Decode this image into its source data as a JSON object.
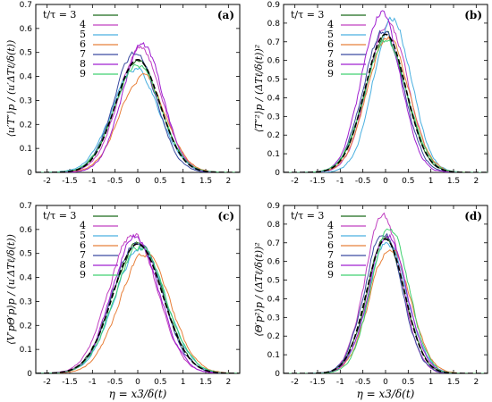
{
  "colors": {
    "3": "#1a6b1a",
    "4": "#c040c0",
    "5": "#4ab0e0",
    "6": "#e8803a",
    "7": "#3a4aa0",
    "8": "#a020d0",
    "9": "#40d070",
    "mean": "#000000"
  },
  "chart_data": [
    {
      "type": "line",
      "panel": "(a)",
      "ylabel": "⟨u′T″⟩p / (u′ΔTℓ/δ(t))",
      "xlabel": "",
      "xlim": [
        -2.25,
        2.25
      ],
      "ylim": [
        0,
        0.7
      ],
      "xticks": [
        "-2",
        "-1.5",
        "-1",
        "-0.5",
        "0",
        "0.5",
        "1",
        "1.5",
        "2"
      ],
      "yticks": [
        "0",
        "0.1",
        "0.2",
        "0.3",
        "0.4",
        "0.5",
        "0.6",
        "0.7"
      ],
      "legend": {
        "title": "t/τ = 3",
        "entries": [
          "3",
          "4",
          "5",
          "6",
          "7",
          "8",
          "9"
        ],
        "position": "top-left"
      },
      "series": [
        {
          "name": "3",
          "peak": 0.46,
          "mu": 0.0,
          "sigma": 0.5
        },
        {
          "name": "4",
          "peak": 0.52,
          "mu": 0.05,
          "sigma": 0.48
        },
        {
          "name": "5",
          "peak": 0.43,
          "mu": -0.05,
          "sigma": 0.52
        },
        {
          "name": "6",
          "peak": 0.4,
          "mu": 0.1,
          "sigma": 0.5
        },
        {
          "name": "7",
          "peak": 0.5,
          "mu": -0.05,
          "sigma": 0.47
        },
        {
          "name": "8",
          "peak": 0.53,
          "mu": 0.1,
          "sigma": 0.45
        },
        {
          "name": "9",
          "peak": 0.45,
          "mu": 0.0,
          "sigma": 0.51
        },
        {
          "name": "mean",
          "peak": 0.47,
          "mu": 0.0,
          "sigma": 0.49
        }
      ]
    },
    {
      "type": "line",
      "panel": "(b)",
      "ylabel": "⟨T″²⟩p / (ΔTℓ/δ(t))²",
      "xlabel": "",
      "xlim": [
        -2.25,
        2.25
      ],
      "ylim": [
        0,
        0.9
      ],
      "xticks": [
        "-2",
        "-1.5",
        "-1",
        "-0.5",
        "0",
        "0.5",
        "1",
        "1.5",
        "2"
      ],
      "yticks": [
        "0",
        "0.1",
        "0.2",
        "0.3",
        "0.4",
        "0.5",
        "0.6",
        "0.7",
        "0.8",
        "0.9"
      ],
      "legend": {
        "title": "t/τ = 3",
        "entries": [
          "3",
          "4",
          "5",
          "6",
          "7",
          "8",
          "9"
        ],
        "position": "top-left"
      },
      "series": [
        {
          "name": "3",
          "peak": 0.73,
          "mu": 0.0,
          "sigma": 0.45
        },
        {
          "name": "4",
          "peak": 0.8,
          "mu": 0.05,
          "sigma": 0.44
        },
        {
          "name": "5",
          "peak": 0.82,
          "mu": 0.15,
          "sigma": 0.42
        },
        {
          "name": "6",
          "peak": 0.72,
          "mu": 0.05,
          "sigma": 0.46
        },
        {
          "name": "7",
          "peak": 0.75,
          "mu": -0.05,
          "sigma": 0.44
        },
        {
          "name": "8",
          "peak": 0.86,
          "mu": -0.1,
          "sigma": 0.42
        },
        {
          "name": "9",
          "peak": 0.7,
          "mu": 0.0,
          "sigma": 0.47
        },
        {
          "name": "mean",
          "peak": 0.74,
          "mu": 0.0,
          "sigma": 0.45
        }
      ]
    },
    {
      "type": "line",
      "panel": "(c)",
      "ylabel": "⟨V′pΘ′p⟩p / (u′ΔTℓ/δ(t))",
      "xlabel": "η = x3/δ(t)",
      "xlim": [
        -2.25,
        2.25
      ],
      "ylim": [
        0,
        0.7
      ],
      "xticks": [
        "-2",
        "-1.5",
        "-1",
        "-0.5",
        "0",
        "0.5",
        "1",
        "1.5",
        "2"
      ],
      "yticks": [
        "0",
        "0.1",
        "0.2",
        "0.3",
        "0.4",
        "0.5",
        "0.6",
        "0.7"
      ],
      "legend": {
        "title": "t/τ = 3",
        "entries": [
          "3",
          "4",
          "5",
          "6",
          "7",
          "8",
          "9"
        ],
        "position": "top-left"
      },
      "series": [
        {
          "name": "3",
          "peak": 0.55,
          "mu": 0.0,
          "sigma": 0.55
        },
        {
          "name": "4",
          "peak": 0.58,
          "mu": -0.1,
          "sigma": 0.53
        },
        {
          "name": "5",
          "peak": 0.52,
          "mu": 0.05,
          "sigma": 0.56
        },
        {
          "name": "6",
          "peak": 0.5,
          "mu": 0.15,
          "sigma": 0.55
        },
        {
          "name": "7",
          "peak": 0.55,
          "mu": 0.0,
          "sigma": 0.54
        },
        {
          "name": "8",
          "peak": 0.57,
          "mu": -0.05,
          "sigma": 0.52
        },
        {
          "name": "9",
          "peak": 0.53,
          "mu": 0.05,
          "sigma": 0.56
        },
        {
          "name": "mean",
          "peak": 0.54,
          "mu": 0.0,
          "sigma": 0.55
        }
      ]
    },
    {
      "type": "line",
      "panel": "(d)",
      "ylabel": "⟨Θ′p²⟩p / (ΔTℓ/δ(t))²",
      "xlabel": "η = x3/δ(t)",
      "xlim": [
        -2.25,
        2.25
      ],
      "ylim": [
        0,
        0.9
      ],
      "xticks": [
        "-2",
        "-1.5",
        "-1",
        "-0.5",
        "0",
        "0.5",
        "1",
        "1.5",
        "2"
      ],
      "yticks": [
        "0",
        "0.1",
        "0.2",
        "0.3",
        "0.4",
        "0.5",
        "0.6",
        "0.7",
        "0.8",
        "0.9"
      ],
      "legend": {
        "title": "t/τ = 3",
        "entries": [
          "3",
          "4",
          "5",
          "6",
          "7",
          "8",
          "9"
        ],
        "position": "top-left"
      },
      "series": [
        {
          "name": "3",
          "peak": 0.72,
          "mu": 0.0,
          "sigma": 0.42
        },
        {
          "name": "4",
          "peak": 0.84,
          "mu": -0.05,
          "sigma": 0.4
        },
        {
          "name": "5",
          "peak": 0.7,
          "mu": 0.05,
          "sigma": 0.43
        },
        {
          "name": "6",
          "peak": 0.68,
          "mu": 0.1,
          "sigma": 0.44
        },
        {
          "name": "7",
          "peak": 0.76,
          "mu": -0.05,
          "sigma": 0.41
        },
        {
          "name": "8",
          "peak": 0.74,
          "mu": 0.05,
          "sigma": 0.42
        },
        {
          "name": "9",
          "peak": 0.78,
          "mu": 0.1,
          "sigma": 0.41
        },
        {
          "name": "mean",
          "peak": 0.72,
          "mu": 0.0,
          "sigma": 0.42
        }
      ]
    }
  ]
}
